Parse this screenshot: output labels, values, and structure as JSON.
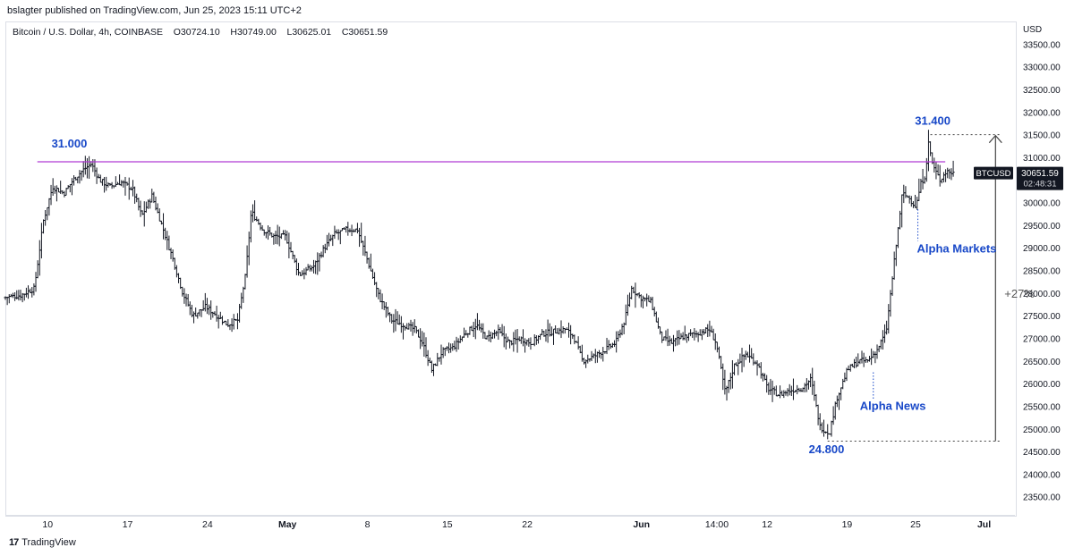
{
  "header": {
    "published": "bslagter published on TradingView.com, Jun 25, 2023 15:11 UTC+2"
  },
  "meta": {
    "symbol": "Bitcoin / U.S. Dollar, 4h, COINBASE",
    "open": "O30724.10",
    "high": "H30749.00",
    "low": "L30625.01",
    "close": "C30651.59"
  },
  "footer": {
    "brand": "TradingView",
    "logo_glyph": "17"
  },
  "colors": {
    "candle": "#131722",
    "resistance": "#b13ad3",
    "annotation": "#1848c8",
    "measure": "#444444"
  },
  "chart_data": {
    "type": "bar",
    "subtype": "ohlc",
    "currency_label": "USD",
    "y_ticks": [
      23500,
      24000,
      24500,
      25000,
      25500,
      26000,
      26500,
      27000,
      27500,
      28000,
      28500,
      29000,
      29500,
      30000,
      30500,
      31000,
      31500,
      32000,
      32500,
      33000,
      33500
    ],
    "y_tick_labels": [
      "23500.00",
      "24000.00",
      "24500.00",
      "25000.00",
      "25500.00",
      "26000.00",
      "26500.00",
      "27000.00",
      "27500.00",
      "28000.00",
      "28500.00",
      "29000.00",
      "29500.00",
      "30000.00",
      "30500.00",
      "31000.00",
      "31500.00",
      "32000.00",
      "32500.00",
      "33000.00",
      "33500.00"
    ],
    "ylim": [
      23100,
      34000
    ],
    "x_ticks": [
      "10",
      "17",
      "24",
      "May",
      "8",
      "15",
      "22",
      "Jun",
      "14:00",
      "12",
      "19",
      "25",
      "Jul"
    ],
    "x_tick_days": [
      9,
      16,
      23,
      30,
      37,
      44,
      51,
      61,
      67.6,
      72,
      79,
      85,
      91
    ],
    "x_range_days": [
      5.3,
      93.7
    ],
    "price_path": [
      [
        5.3,
        27900
      ],
      [
        6.8,
        27950
      ],
      [
        8.0,
        28100
      ],
      [
        8.8,
        29600
      ],
      [
        9.6,
        30350
      ],
      [
        10.6,
        30200
      ],
      [
        11.4,
        30500
      ],
      [
        12.4,
        30750
      ],
      [
        13.0,
        30850
      ],
      [
        13.7,
        30500
      ],
      [
        14.6,
        30350
      ],
      [
        15.6,
        30450
      ],
      [
        16.6,
        30300
      ],
      [
        17.4,
        29700
      ],
      [
        18.3,
        30150
      ],
      [
        19.3,
        29400
      ],
      [
        20.2,
        28700
      ],
      [
        21.0,
        28000
      ],
      [
        21.9,
        27500
      ],
      [
        23.0,
        27700
      ],
      [
        24.0,
        27500
      ],
      [
        24.9,
        27300
      ],
      [
        25.8,
        27400
      ],
      [
        26.5,
        28400
      ],
      [
        27.0,
        29800
      ],
      [
        28.0,
        29400
      ],
      [
        29.0,
        29250
      ],
      [
        30.0,
        29250
      ],
      [
        31.2,
        28400
      ],
      [
        32.5,
        28600
      ],
      [
        33.4,
        29000
      ],
      [
        34.3,
        29300
      ],
      [
        35.3,
        29400
      ],
      [
        36.3,
        29400
      ],
      [
        37.2,
        28700
      ],
      [
        38.2,
        27900
      ],
      [
        39.3,
        27400
      ],
      [
        40.3,
        27300
      ],
      [
        41.3,
        27200
      ],
      [
        42.0,
        26900
      ],
      [
        42.8,
        26300
      ],
      [
        43.7,
        26700
      ],
      [
        44.7,
        26800
      ],
      [
        45.7,
        27100
      ],
      [
        46.7,
        27300
      ],
      [
        47.6,
        27000
      ],
      [
        48.6,
        27150
      ],
      [
        49.6,
        26900
      ],
      [
        50.5,
        27000
      ],
      [
        51.5,
        26900
      ],
      [
        52.5,
        27100
      ],
      [
        53.5,
        27150
      ],
      [
        54.5,
        27200
      ],
      [
        55.2,
        27050
      ],
      [
        56.0,
        26500
      ],
      [
        57.0,
        26600
      ],
      [
        58.0,
        26750
      ],
      [
        58.9,
        26900
      ],
      [
        59.7,
        27400
      ],
      [
        60.3,
        28100
      ],
      [
        61.1,
        27900
      ],
      [
        62.0,
        27800
      ],
      [
        62.9,
        27000
      ],
      [
        63.8,
        26900
      ],
      [
        64.9,
        27050
      ],
      [
        66.0,
        27100
      ],
      [
        67.1,
        27200
      ],
      [
        67.7,
        26900
      ],
      [
        68.5,
        25800
      ],
      [
        69.3,
        26400
      ],
      [
        70.3,
        26650
      ],
      [
        71.3,
        26450
      ],
      [
        72.2,
        25900
      ],
      [
        73.2,
        25750
      ],
      [
        74.2,
        25850
      ],
      [
        75.2,
        25900
      ],
      [
        76.0,
        26100
      ],
      [
        76.8,
        25050
      ],
      [
        77.6,
        24900
      ],
      [
        78.3,
        25700
      ],
      [
        79.2,
        26300
      ],
      [
        80.2,
        26500
      ],
      [
        81.0,
        26500
      ],
      [
        81.8,
        26750
      ],
      [
        82.6,
        27150
      ],
      [
        83.3,
        28700
      ],
      [
        84.0,
        30200
      ],
      [
        84.6,
        30100
      ],
      [
        85.2,
        29900
      ],
      [
        85.6,
        30400
      ],
      [
        86.0,
        30600
      ],
      [
        86.3,
        31300
      ],
      [
        86.7,
        30800
      ],
      [
        87.3,
        30500
      ],
      [
        87.9,
        30700
      ],
      [
        88.4,
        30650
      ]
    ],
    "levels": [
      {
        "label": "31.000",
        "value": 31000
      },
      {
        "label": "31.400",
        "value": 31400
      },
      {
        "label": "24.800",
        "value": 24800
      }
    ],
    "annotations": [
      {
        "label": "Alpha Markets",
        "day": 85.2
      },
      {
        "label": "Alpha News",
        "day": 81.3
      }
    ],
    "measure": {
      "label": "+27%",
      "from": 24800,
      "to": 31400
    },
    "price_tag": {
      "symbol": "BTCUSD",
      "value": 30651.59,
      "value_label": "30651.59",
      "countdown": "02:48:31"
    }
  }
}
